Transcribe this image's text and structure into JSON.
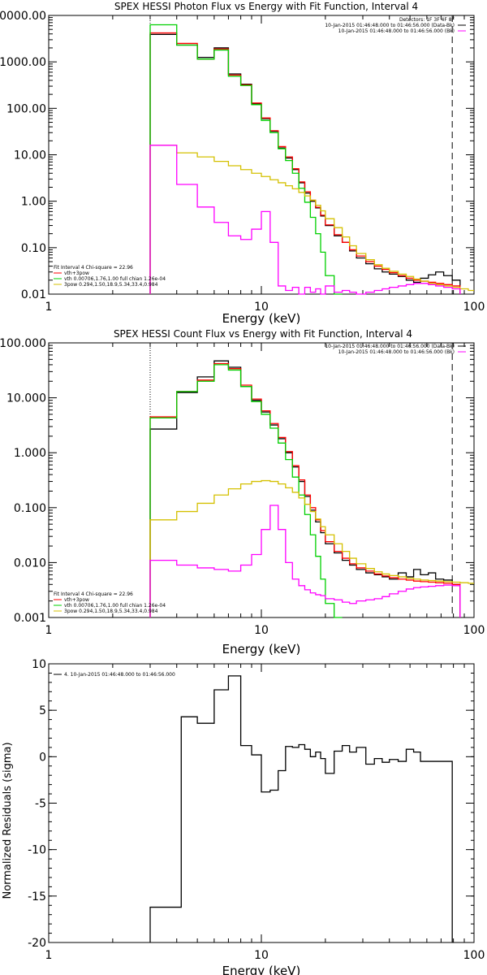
{
  "chart_data": [
    {
      "type": "line",
      "title": "SPEX HESSI Photon Flux vs Energy with Fit Function, Interval 4",
      "xlabel": "Energy (keV)",
      "ylabel": "",
      "xscale": "log",
      "yscale": "log",
      "xlim": [
        1,
        100
      ],
      "ylim": [
        0.01,
        10000
      ],
      "xticks": [
        {
          "v": 1,
          "l": "1"
        },
        {
          "v": 10,
          "l": "10"
        },
        {
          "v": 100,
          "l": "100"
        }
      ],
      "yticks": [
        {
          "v": 10000,
          "l": "10000.00"
        },
        {
          "v": 1000,
          "l": "1000.00"
        },
        {
          "v": 100,
          "l": "100.00"
        },
        {
          "v": 10,
          "l": "10.00"
        },
        {
          "v": 1,
          "l": "1.00"
        },
        {
          "v": 0.1,
          "l": "0.10"
        },
        {
          "v": 0.01,
          "l": "0.01"
        }
      ],
      "bin_edges": [
        3.0,
        4.0,
        5.0,
        6.0,
        7.0,
        8.0,
        9.0,
        10.0,
        11.0,
        12.0,
        13.0,
        14.0,
        15.0,
        16.0,
        17.0,
        18.0,
        19.0,
        20.0,
        22.0,
        24.0,
        26.0,
        28.0,
        31.0,
        34.0,
        37.0,
        40.0,
        44.0,
        48.0,
        52.0,
        56.0,
        61.0,
        66.0,
        72.0,
        79.0,
        86.0,
        94.0,
        100.0
      ],
      "series": [
        {
          "name": "",
          "color": "#000000",
          "values": [
            3900,
            2300,
            1250,
            2000,
            550,
            330,
            125,
            60,
            32,
            14,
            8.5,
            4.8,
            2.5,
            1.5,
            1.0,
            0.72,
            0.48,
            0.3,
            0.18,
            0.13,
            0.085,
            0.06,
            0.045,
            0.035,
            0.03,
            0.027,
            0.024,
            0.02,
            0.018,
            0.022,
            0.026,
            0.03,
            0.025,
            0.02,
            null,
            null
          ]
        },
        {
          "name": "vth+3pow",
          "color": "#ff0000",
          "values": [
            4200,
            2500,
            1150,
            1900,
            520,
            320,
            130,
            62,
            33,
            15,
            9.0,
            5.0,
            2.6,
            1.6,
            1.05,
            0.74,
            0.5,
            0.31,
            0.19,
            0.13,
            0.09,
            0.066,
            0.05,
            0.04,
            0.034,
            0.029,
            0.025,
            0.022,
            0.02,
            0.019,
            0.018,
            0.017,
            0.016,
            0.015,
            null,
            null
          ]
        },
        {
          "name": "vth 0.00706,1.76,1.00  full chian 1.26e-04",
          "color": "#00d000",
          "values": [
            6300,
            2300,
            1150,
            1800,
            490,
            310,
            120,
            55,
            30,
            13.5,
            7.5,
            4.0,
            1.9,
            0.95,
            0.45,
            0.2,
            0.08,
            0.025,
            0.008,
            null,
            null,
            null,
            null,
            null,
            null,
            null,
            null,
            null,
            null,
            null,
            null,
            null,
            null,
            null,
            null,
            null
          ]
        },
        {
          "name": "3pow 0.294,1.50,18.9,5.34,33.4,0.984",
          "color": "#d4c000",
          "values": [
            16,
            11,
            9.0,
            7.2,
            5.8,
            4.8,
            4.0,
            3.4,
            2.9,
            2.5,
            2.15,
            1.85,
            1.55,
            1.3,
            1.05,
            0.82,
            0.62,
            0.42,
            0.27,
            0.17,
            0.11,
            0.075,
            0.055,
            0.043,
            0.036,
            0.031,
            0.027,
            0.024,
            0.021,
            0.019,
            0.017,
            0.016,
            0.015,
            0.014,
            0.013,
            0.012
          ]
        },
        {
          "name": "",
          "color": "#ff00ff",
          "values": [
            16,
            2.3,
            0.75,
            0.35,
            0.18,
            0.15,
            0.25,
            0.6,
            0.13,
            0.015,
            0.012,
            0.014,
            0.01,
            0.014,
            0.011,
            0.013,
            0.009,
            0.015,
            0.011,
            0.012,
            0.011,
            0.01,
            0.011,
            0.012,
            0.013,
            0.014,
            0.015,
            0.016,
            0.017,
            0.017,
            0.016,
            0.015,
            0.014,
            0.013,
            null,
            null
          ]
        }
      ],
      "legend_lines": [
        "Fit Interval  4    Chi-square = 22.96",
        "vth+3pow",
        "vth 0.00706,1.76,1.00  full chian 1.26e-04",
        "3pow 0.294,1.50,18.9,5.34,33.4,0.984"
      ],
      "detector_lines": [
        "Detectors: 1F 3F 4F 8F",
        "10-Jan-2015 01:46:48.000 to 01:46:56.000 (Data-Bk)",
        "10-Jan-2015 01:46:48.000 to 01:46:56.000 (Bk)"
      ],
      "vlines": [
        {
          "x": 3.0,
          "style": "dotted"
        },
        {
          "x": 79.0,
          "style": "dashed"
        }
      ]
    },
    {
      "type": "line",
      "title": "SPEX HESSI Count Flux vs Energy with Fit Function, Interval 4",
      "xlabel": "Energy (keV)",
      "ylabel": "",
      "xscale": "log",
      "yscale": "log",
      "xlim": [
        1,
        100
      ],
      "ylim": [
        0.001,
        100
      ],
      "xticks": [
        {
          "v": 1,
          "l": "1"
        },
        {
          "v": 10,
          "l": "10"
        },
        {
          "v": 100,
          "l": "100"
        }
      ],
      "yticks": [
        {
          "v": 100,
          "l": "100.000"
        },
        {
          "v": 10,
          "l": "10.000"
        },
        {
          "v": 1,
          "l": "1.000"
        },
        {
          "v": 0.1,
          "l": "0.100"
        },
        {
          "v": 0.01,
          "l": "0.010"
        },
        {
          "v": 0.001,
          "l": "0.001"
        }
      ],
      "bin_edges": [
        3.0,
        4.0,
        5.0,
        6.0,
        7.0,
        8.0,
        9.0,
        10.0,
        11.0,
        12.0,
        13.0,
        14.0,
        15.0,
        16.0,
        17.0,
        18.0,
        19.0,
        20.0,
        22.0,
        24.0,
        26.0,
        28.0,
        31.0,
        34.0,
        37.0,
        40.0,
        44.0,
        48.0,
        52.0,
        56.0,
        61.0,
        66.0,
        72.0,
        79.0,
        86.0,
        94.0,
        100.0
      ],
      "series": [
        {
          "name": "",
          "color": "#000000",
          "values": [
            2.7,
            12.5,
            24,
            47,
            36,
            16,
            9,
            5.5,
            3.2,
            1.8,
            1.0,
            0.55,
            0.3,
            0.16,
            0.09,
            0.055,
            0.035,
            0.022,
            0.015,
            0.011,
            0.009,
            0.0075,
            0.0065,
            0.006,
            0.0055,
            0.005,
            0.0065,
            0.0055,
            0.0075,
            0.006,
            0.0065,
            0.005,
            0.0048,
            0.004,
            null,
            null
          ]
        },
        {
          "name": "vth+3pow",
          "color": "#ff0000",
          "values": [
            4.5,
            13,
            21,
            42,
            34,
            17,
            9.5,
            5.8,
            3.4,
            1.9,
            1.05,
            0.58,
            0.32,
            0.17,
            0.1,
            0.06,
            0.038,
            0.024,
            0.016,
            0.012,
            0.0095,
            0.008,
            0.007,
            0.0062,
            0.0057,
            0.0053,
            0.005,
            0.0048,
            0.0046,
            0.0045,
            0.0044,
            0.0043,
            0.0042,
            0.004,
            null,
            null
          ]
        },
        {
          "name": "vth 0.00706,1.76,1.00  full chian 1.26e-04",
          "color": "#00d000",
          "values": [
            4.3,
            13,
            20,
            40,
            32,
            16,
            8.5,
            5.0,
            2.8,
            1.5,
            0.75,
            0.36,
            0.17,
            0.075,
            0.032,
            0.013,
            0.005,
            0.0018,
            0.0008,
            null,
            null,
            null,
            null,
            null,
            null,
            null,
            null,
            null,
            null,
            null,
            null,
            null,
            null,
            null,
            null,
            null
          ]
        },
        {
          "name": "3pow 0.294,1.50,18.9,5.34,33.4,0.984",
          "color": "#d4c000",
          "values": [
            0.06,
            0.085,
            0.12,
            0.17,
            0.22,
            0.27,
            0.3,
            0.31,
            0.3,
            0.27,
            0.23,
            0.19,
            0.15,
            0.115,
            0.085,
            0.062,
            0.045,
            0.032,
            0.022,
            0.016,
            0.012,
            0.0095,
            0.0078,
            0.0068,
            0.0062,
            0.0058,
            0.0055,
            0.0052,
            0.005,
            0.0048,
            0.0047,
            0.0046,
            0.0045,
            0.0044,
            0.0043,
            0.0042
          ]
        },
        {
          "name": "",
          "color": "#ff00ff",
          "values": [
            0.011,
            0.009,
            0.008,
            0.0075,
            0.007,
            0.009,
            0.014,
            0.04,
            0.11,
            0.04,
            0.01,
            0.005,
            0.0038,
            0.0032,
            0.0028,
            0.0026,
            0.0025,
            0.0022,
            0.0021,
            0.0019,
            0.0018,
            0.002,
            0.0021,
            0.0022,
            0.0024,
            0.0027,
            0.003,
            0.0033,
            0.0035,
            0.0036,
            0.0037,
            0.0038,
            0.0039,
            0.0038,
            null,
            null
          ]
        }
      ],
      "legend_lines": [
        "Fit Interval  4    Chi-square = 22.96",
        "vth+3pow",
        "vth 0.00706,1.76,1.00  full chian 1.26e-04",
        "3pow 0.294,1.50,18.9,5.34,33.4,0.984"
      ],
      "detector_lines": [
        "10-Jan-2015 01:46:48.000 to 01:46:56.000 (Data-Bk)",
        "10-Jan-2015 01:46:48.000 to 01:46:56.000 (Bk)"
      ],
      "vlines": [
        {
          "x": 3.0,
          "style": "dotted"
        },
        {
          "x": 79.0,
          "style": "dashed"
        }
      ]
    },
    {
      "type": "line",
      "title": "",
      "xlabel": "Energy (keV)",
      "ylabel": "Normalized Residuals (sigma)",
      "xscale": "log",
      "yscale": "linear",
      "xlim": [
        1,
        100
      ],
      "ylim": [
        -20,
        10
      ],
      "xticks": [
        {
          "v": 1,
          "l": "1"
        },
        {
          "v": 10,
          "l": "10"
        },
        {
          "v": 100,
          "l": "100"
        }
      ],
      "yticks": [
        {
          "v": 10,
          "l": "10"
        },
        {
          "v": 5,
          "l": "5"
        },
        {
          "v": 0,
          "l": "0"
        },
        {
          "v": -5,
          "l": "-5"
        },
        {
          "v": -10,
          "l": "-10"
        },
        {
          "v": -15,
          "l": "-15"
        },
        {
          "v": -20,
          "l": "-20"
        }
      ],
      "bin_edges": [
        3.0,
        4.0,
        4.2,
        5.0,
        6.0,
        6.6,
        7.0,
        7.5,
        8.0,
        9.0,
        10.0,
        11.0,
        12.0,
        13.0,
        14.0,
        15.0,
        16.0,
        17.0,
        18.0,
        19.0,
        20.0,
        22.0,
        24.0,
        26.0,
        28.0,
        31.0,
        34.0,
        37.0,
        40.0,
        44.0,
        48.0,
        52.0,
        56.0,
        61.0,
        66.0,
        72.0,
        79.0
      ],
      "series": [
        {
          "name": "4. 10-Jan-2015 01:46:48.000 to 01:46:56.000",
          "color": "#000000",
          "values": [
            -16.2,
            -16.2,
            4.3,
            3.6,
            7.2,
            7.2,
            8.7,
            8.7,
            1.2,
            0.2,
            -3.8,
            -3.6,
            -1.5,
            1.1,
            1.0,
            1.3,
            0.8,
            0.0,
            0.5,
            -0.2,
            -1.8,
            0.6,
            1.2,
            0.5,
            1.0,
            -0.8,
            -0.2,
            -0.6,
            -0.3,
            -0.5,
            0.8,
            0.5,
            -0.5,
            -0.5,
            -0.5,
            -0.5
          ]
        }
      ],
      "legend_lines": [
        "4. 10-Jan-2015 01:46:48.000 to 01:46:56.000"
      ],
      "detector_lines": [],
      "vlines": [
        {
          "x": 79.0,
          "style": "solid-drop"
        }
      ]
    }
  ]
}
